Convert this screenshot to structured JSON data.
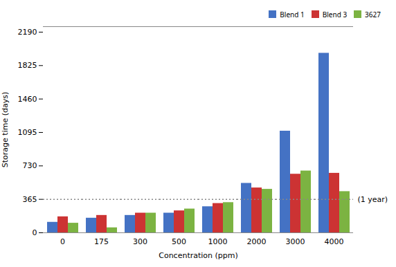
{
  "chart_data": {
    "type": "bar",
    "categories": [
      0,
      175,
      300,
      500,
      1000,
      2000,
      3000,
      4000
    ],
    "series": [
      {
        "name": "Blend 1",
        "color": "#4472C4",
        "values": [
          115,
          160,
          190,
          215,
          285,
          540,
          1110,
          1960
        ]
      },
      {
        "name": "Blend 3",
        "color": "#CC3333",
        "values": [
          175,
          190,
          215,
          240,
          320,
          490,
          640,
          650
        ]
      },
      {
        "name": "3627",
        "color": "#7CB342",
        "values": [
          105,
          55,
          215,
          260,
          330,
          475,
          675,
          450
        ]
      }
    ],
    "xlabel": "Concentration (ppm)",
    "ylabel": "Storage time (days)",
    "ylim": [
      0,
      2250
    ],
    "yticks": [
      0,
      365,
      730,
      1095,
      1460,
      1825,
      2190
    ],
    "reference_line": {
      "y": 365,
      "label": "(1 year)",
      "line_style": "dotted"
    },
    "legend": "upper right",
    "grid": false
  }
}
